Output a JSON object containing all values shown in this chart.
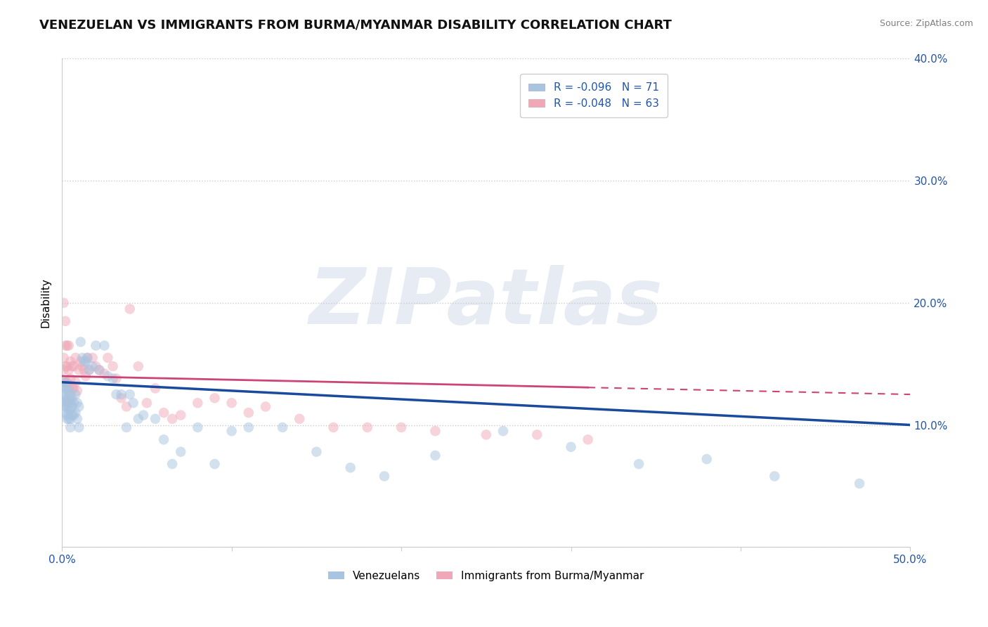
{
  "title": "VENEZUELAN VS IMMIGRANTS FROM BURMA/MYANMAR DISABILITY CORRELATION CHART",
  "source": "Source: ZipAtlas.com",
  "ylabel": "Disability",
  "xlim": [
    0,
    0.5
  ],
  "ylim": [
    0,
    0.4
  ],
  "xticks": [
    0.0,
    0.1,
    0.2,
    0.3,
    0.4,
    0.5
  ],
  "yticks": [
    0.0,
    0.1,
    0.2,
    0.3,
    0.4
  ],
  "xtick_labels": [
    "0.0%",
    "",
    "",
    "",
    "",
    "50.0%"
  ],
  "ytick_labels_right": [
    "",
    "10.0%",
    "20.0%",
    "30.0%",
    "40.0%"
  ],
  "series": [
    {
      "name": "Venezuelans",
      "R": -0.096,
      "N": 71,
      "color": "#a8c4e0",
      "line_color": "#1a4a9e",
      "line_style": "solid"
    },
    {
      "name": "Immigrants from Burma/Myanmar",
      "R": -0.048,
      "N": 63,
      "color": "#f0a8b8",
      "line_color": "#cc4477",
      "line_style": "dashed"
    }
  ],
  "venezuelan_x": [
    0.001,
    0.001,
    0.001,
    0.002,
    0.002,
    0.002,
    0.002,
    0.002,
    0.003,
    0.003,
    0.003,
    0.003,
    0.003,
    0.004,
    0.004,
    0.004,
    0.004,
    0.005,
    0.005,
    0.005,
    0.005,
    0.005,
    0.006,
    0.006,
    0.006,
    0.007,
    0.007,
    0.008,
    0.008,
    0.009,
    0.009,
    0.01,
    0.01,
    0.011,
    0.012,
    0.013,
    0.014,
    0.015,
    0.016,
    0.018,
    0.02,
    0.022,
    0.025,
    0.027,
    0.03,
    0.032,
    0.035,
    0.038,
    0.04,
    0.042,
    0.045,
    0.048,
    0.055,
    0.06,
    0.065,
    0.07,
    0.08,
    0.09,
    0.1,
    0.11,
    0.13,
    0.15,
    0.17,
    0.19,
    0.22,
    0.26,
    0.3,
    0.34,
    0.38,
    0.42,
    0.47
  ],
  "venezuelan_y": [
    0.13,
    0.125,
    0.118,
    0.135,
    0.128,
    0.12,
    0.115,
    0.11,
    0.13,
    0.122,
    0.115,
    0.108,
    0.105,
    0.128,
    0.12,
    0.112,
    0.105,
    0.125,
    0.118,
    0.112,
    0.105,
    0.098,
    0.122,
    0.115,
    0.108,
    0.118,
    0.108,
    0.125,
    0.11,
    0.118,
    0.105,
    0.115,
    0.098,
    0.168,
    0.155,
    0.152,
    0.152,
    0.155,
    0.145,
    0.148,
    0.165,
    0.145,
    0.165,
    0.14,
    0.138,
    0.125,
    0.125,
    0.098,
    0.125,
    0.118,
    0.105,
    0.108,
    0.105,
    0.088,
    0.068,
    0.078,
    0.098,
    0.068,
    0.095,
    0.098,
    0.098,
    0.078,
    0.065,
    0.058,
    0.075,
    0.095,
    0.082,
    0.068,
    0.072,
    0.058,
    0.052
  ],
  "burma_x": [
    0.001,
    0.001,
    0.001,
    0.001,
    0.002,
    0.002,
    0.002,
    0.002,
    0.002,
    0.003,
    0.003,
    0.003,
    0.003,
    0.004,
    0.004,
    0.004,
    0.004,
    0.005,
    0.005,
    0.005,
    0.006,
    0.006,
    0.007,
    0.007,
    0.008,
    0.008,
    0.009,
    0.01,
    0.011,
    0.012,
    0.013,
    0.014,
    0.015,
    0.016,
    0.018,
    0.02,
    0.022,
    0.025,
    0.027,
    0.03,
    0.032,
    0.035,
    0.038,
    0.04,
    0.045,
    0.05,
    0.055,
    0.06,
    0.065,
    0.07,
    0.08,
    0.09,
    0.1,
    0.11,
    0.12,
    0.14,
    0.16,
    0.18,
    0.2,
    0.22,
    0.25,
    0.28,
    0.31
  ],
  "burma_y": [
    0.2,
    0.155,
    0.145,
    0.135,
    0.185,
    0.165,
    0.148,
    0.135,
    0.12,
    0.165,
    0.148,
    0.135,
    0.118,
    0.165,
    0.145,
    0.13,
    0.118,
    0.152,
    0.138,
    0.122,
    0.148,
    0.13,
    0.148,
    0.13,
    0.155,
    0.135,
    0.128,
    0.145,
    0.152,
    0.148,
    0.145,
    0.14,
    0.155,
    0.145,
    0.155,
    0.148,
    0.145,
    0.142,
    0.155,
    0.148,
    0.138,
    0.122,
    0.115,
    0.195,
    0.148,
    0.118,
    0.13,
    0.11,
    0.105,
    0.108,
    0.118,
    0.122,
    0.118,
    0.11,
    0.115,
    0.105,
    0.098,
    0.098,
    0.098,
    0.095,
    0.092,
    0.092,
    0.088
  ],
  "trend_v_x0": 0.0,
  "trend_v_y0": 0.135,
  "trend_v_x1": 0.5,
  "trend_v_y1": 0.1,
  "trend_b_x0": 0.0,
  "trend_b_y0": 0.14,
  "trend_b_x1": 0.5,
  "trend_b_y1": 0.125,
  "watermark_text": "ZIPatlas",
  "background_color": "#ffffff",
  "grid_color": "#cccccc",
  "title_fontsize": 13,
  "axis_label_fontsize": 11,
  "tick_fontsize": 11,
  "legend_fontsize": 11,
  "marker_size": 110,
  "marker_alpha": 0.5
}
